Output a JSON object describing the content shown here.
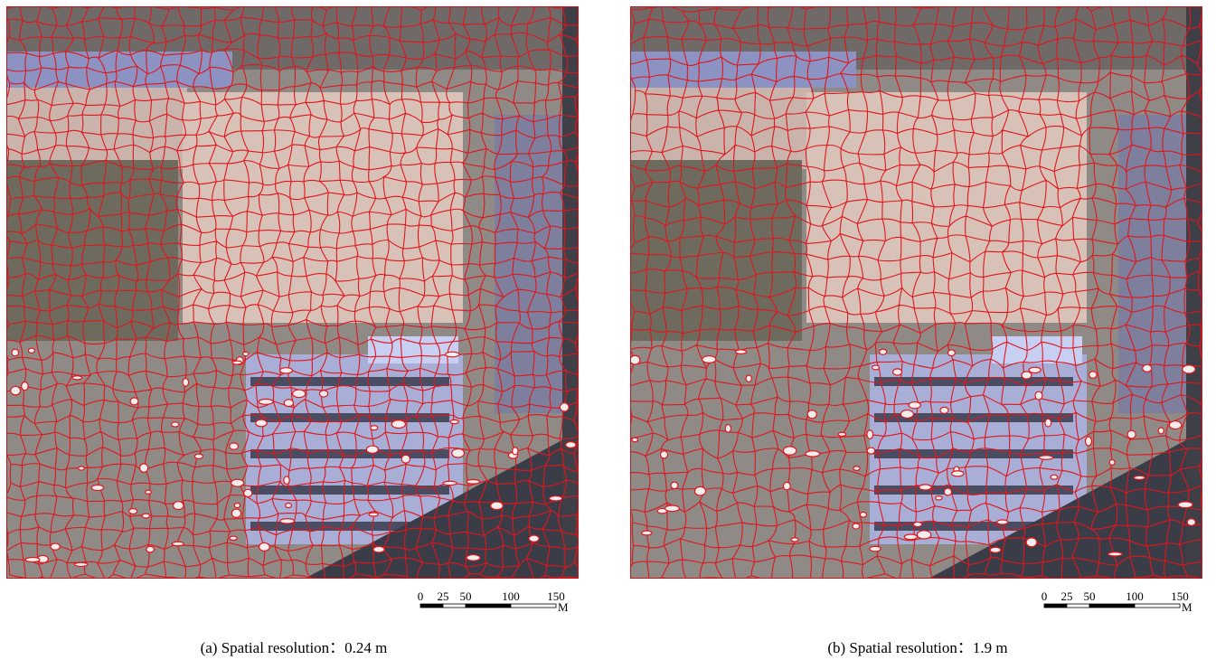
{
  "panels": [
    {
      "caption": "(a) Spatial resolution：0.24 m",
      "scale_bar": {
        "ticks": [
          0,
          25,
          50,
          100,
          150
        ],
        "unit": "M"
      }
    },
    {
      "caption": "(b) Spatial resolution：1.9 m",
      "scale_bar": {
        "ticks": [
          0,
          25,
          50,
          100,
          150
        ],
        "unit": "M"
      }
    }
  ]
}
